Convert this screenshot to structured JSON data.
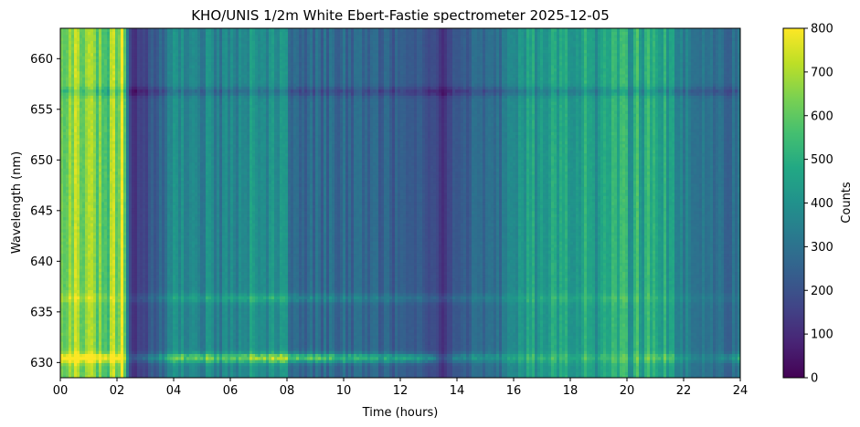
{
  "chart_data": {
    "type": "heatmap",
    "title": "KHO/UNIS 1/2m White Ebert-Fastie spectrometer 2025-12-05",
    "xlabel": "Time (hours)",
    "ylabel": "Wavelength (nm)",
    "colorbar_label": "Counts",
    "colormap": "viridis",
    "xlim": [
      0,
      24
    ],
    "ylim": [
      628.5,
      663
    ],
    "clim": [
      0,
      800
    ],
    "x_ticks": [
      0,
      2,
      4,
      6,
      8,
      10,
      12,
      14,
      16,
      18,
      20,
      22,
      24
    ],
    "x_tick_labels": [
      "00",
      "02",
      "04",
      "06",
      "08",
      "10",
      "12",
      "14",
      "16",
      "18",
      "20",
      "22",
      "24"
    ],
    "y_ticks": [
      630,
      635,
      640,
      645,
      650,
      655,
      660
    ],
    "y_tick_labels": [
      "630",
      "635",
      "640",
      "645",
      "650",
      "655",
      "660"
    ],
    "colorbar_ticks": [
      0,
      100,
      200,
      300,
      400,
      500,
      600,
      700,
      800
    ],
    "colorbar_tick_labels": [
      "0",
      "100",
      "200",
      "300",
      "400",
      "500",
      "600",
      "700",
      "800"
    ],
    "background_profile": {
      "time_hours": [
        0,
        0.3,
        0.7,
        1.0,
        1.3,
        1.6,
        1.9,
        2.2,
        2.4,
        2.5,
        3.0,
        3.5,
        4.0,
        5.0,
        6.0,
        7.0,
        8.0,
        8.3,
        9.0,
        10.0,
        11.0,
        12.0,
        12.9,
        13.5,
        14.0,
        15.0,
        16.0,
        16.6,
        17.0,
        18.0,
        19.0,
        20.0,
        21.0,
        21.5,
        22.0,
        23.0,
        24.0
      ],
      "counts": [
        600,
        640,
        680,
        750,
        620,
        560,
        640,
        680,
        250,
        120,
        170,
        280,
        370,
        380,
        350,
        420,
        370,
        240,
        280,
        290,
        260,
        240,
        220,
        110,
        240,
        280,
        340,
        430,
        440,
        450,
        460,
        480,
        520,
        430,
        330,
        280,
        280
      ]
    },
    "emission_lines": [
      {
        "wavelength_nm": 630.5,
        "time_hours": [
          0,
          2,
          2.4,
          3.0,
          4.0,
          5.0,
          6.0,
          7.0,
          7.5,
          8.0,
          8.5,
          9.0,
          10.0,
          11.0,
          12.0,
          13.0,
          13.5,
          14.0,
          15.0,
          16.0,
          18.0,
          20.0,
          21.0,
          21.5,
          22.0,
          23.0,
          24.0
        ],
        "extra_counts": [
          230,
          230,
          80,
          120,
          220,
          250,
          230,
          270,
          330,
          310,
          300,
          310,
          270,
          240,
          220,
          210,
          60,
          150,
          130,
          100,
          70,
          70,
          100,
          140,
          70,
          50,
          180
        ]
      },
      {
        "wavelength_nm": 636.4,
        "time_hours": [
          0,
          2.4,
          4.0,
          7.0,
          10.0,
          13.5,
          16.0,
          20.0,
          22.0,
          24.0
        ],
        "extra_counts": [
          70,
          40,
          70,
          100,
          80,
          60,
          50,
          40,
          30,
          30
        ]
      },
      {
        "wavelength_nm": 656.8,
        "time_hours": [
          0,
          24
        ],
        "extra_counts": [
          -80,
          -80
        ]
      }
    ]
  }
}
